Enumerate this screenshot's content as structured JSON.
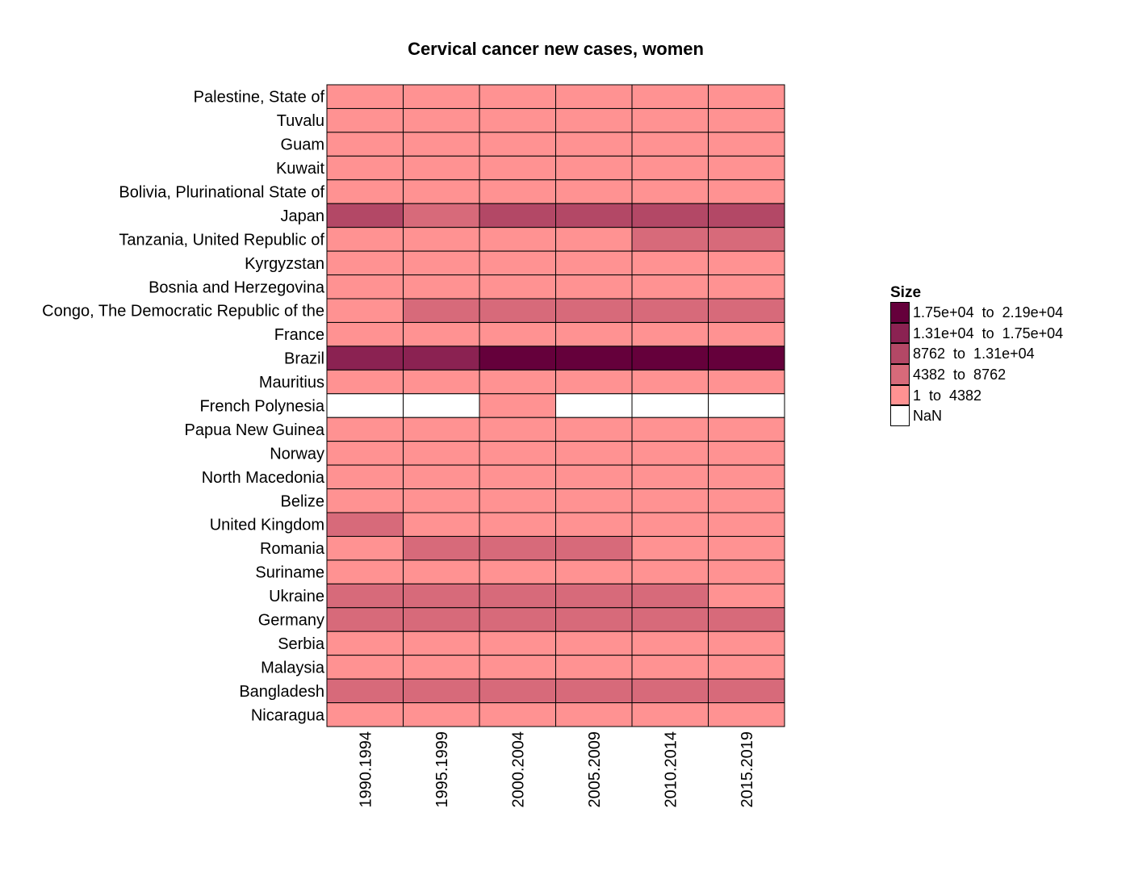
{
  "chart_data": {
    "type": "heatmap",
    "title": "Cervical cancer new cases, women",
    "x": [
      "1990.1994",
      "1995.1999",
      "2000.2004",
      "2005.2009",
      "2010.2014",
      "2015.2019"
    ],
    "y": [
      "Palestine, State of",
      "Tuvalu",
      "Guam",
      "Kuwait",
      "Bolivia, Plurinational State of",
      "Japan",
      "Tanzania, United Republic of",
      "Kyrgyzstan",
      "Bosnia and Herzegovina",
      "Congo, The Democratic Republic of the",
      "France",
      "Brazil",
      "Mauritius",
      "French Polynesia",
      "Papua New Guinea",
      "Norway",
      "North Macedonia",
      "Belize",
      "United Kingdom",
      "Romania",
      "Suriname",
      "Ukraine",
      "Germany",
      "Serbia",
      "Malaysia",
      "Bangladesh",
      "Nicaragua"
    ],
    "bins": [
      [
        0,
        0,
        0,
        0,
        0,
        0
      ],
      [
        0,
        0,
        0,
        0,
        0,
        0
      ],
      [
        0,
        0,
        0,
        0,
        0,
        0
      ],
      [
        0,
        0,
        0,
        0,
        0,
        0
      ],
      [
        0,
        0,
        0,
        0,
        0,
        0
      ],
      [
        2,
        1,
        2,
        2,
        2,
        2
      ],
      [
        0,
        0,
        0,
        0,
        1,
        1
      ],
      [
        0,
        0,
        0,
        0,
        0,
        0
      ],
      [
        0,
        0,
        0,
        0,
        0,
        0
      ],
      [
        0,
        1,
        1,
        1,
        1,
        1
      ],
      [
        0,
        0,
        0,
        0,
        0,
        0
      ],
      [
        3,
        3,
        4,
        4,
        4,
        4
      ],
      [
        0,
        0,
        0,
        0,
        0,
        0
      ],
      [
        -1,
        -1,
        0,
        -1,
        -1,
        -1
      ],
      [
        0,
        0,
        0,
        0,
        0,
        0
      ],
      [
        0,
        0,
        0,
        0,
        0,
        0
      ],
      [
        0,
        0,
        0,
        0,
        0,
        0
      ],
      [
        0,
        0,
        0,
        0,
        0,
        0
      ],
      [
        1,
        0,
        0,
        0,
        0,
        0
      ],
      [
        0,
        1,
        1,
        1,
        0,
        0
      ],
      [
        0,
        0,
        0,
        0,
        0,
        0
      ],
      [
        1,
        1,
        1,
        1,
        1,
        0
      ],
      [
        1,
        1,
        1,
        1,
        1,
        1
      ],
      [
        0,
        0,
        0,
        0,
        0,
        0
      ],
      [
        0,
        0,
        0,
        0,
        0,
        0
      ],
      [
        1,
        1,
        1,
        1,
        1,
        1
      ],
      [
        0,
        0,
        0,
        0,
        0,
        0
      ]
    ],
    "legend": {
      "title": "Size",
      "items": [
        {
          "label": "1.75e+04  to  2.19e+04",
          "color": "#65003b"
        },
        {
          "label": "1.31e+04  to  1.75e+04",
          "color": "#8b2252"
        },
        {
          "label": "8762  to  1.31e+04",
          "color": "#b34866"
        },
        {
          "label": "4382  to  8762",
          "color": "#d76a7a"
        },
        {
          "label": "1  to  4382",
          "color": "#ff9292"
        },
        {
          "label": "NaN",
          "color": "#ffffff"
        }
      ]
    },
    "bin_colors": {
      "-1": "#ffffff",
      "0": "#ff9292",
      "1": "#d76a7a",
      "2": "#b34866",
      "3": "#8b2252",
      "4": "#65003b"
    },
    "legend_position": "right"
  }
}
